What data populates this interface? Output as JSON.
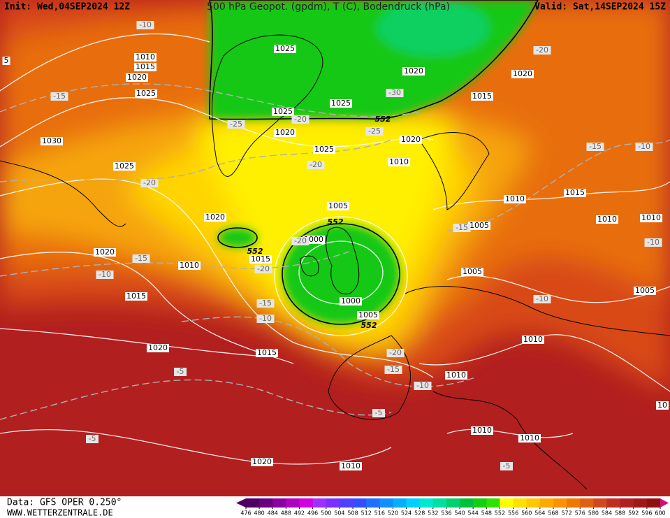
{
  "header": {
    "init": "Init: Wed,04SEP2024 12Z",
    "title": "500 hPa Geopot. (gpdm), T (C), Bodendruck (hPa)",
    "valid": "Valid: Sat,14SEP2024 15Z"
  },
  "footer": {
    "data_source": "Data: GFS OPER 0.250°",
    "website": "WWW.WETTERZENTRALE.DE"
  },
  "map": {
    "isobar_labels": [
      "1025",
      "1020",
      "1020",
      "1015",
      "1025",
      "1025",
      "1020",
      "1025",
      "1020",
      "1010",
      "1010",
      "1015",
      "1020",
      "1025",
      "1030",
      "1025",
      "1005",
      "1005",
      "1010",
      "1015",
      "1010",
      "1010",
      "1000",
      "1015",
      "1020",
      "1020",
      "1010",
      "1015",
      "1005",
      "1000",
      "1005",
      "1005",
      "1010",
      "1020",
      "1015",
      "1010",
      "1010",
      "1010",
      "1010",
      "1020",
      "5",
      "10"
    ],
    "temperature_labels": [
      "-10",
      "-20",
      "-30",
      "-25",
      "-20",
      "-25",
      "-20",
      "-15",
      "-10",
      "-20",
      "-15",
      "-20",
      "-15",
      "-10",
      "-20",
      "-15",
      "-10",
      "-10",
      "-10",
      "-20",
      "-15",
      "-10",
      "-5",
      "-5",
      "-5",
      "-5",
      "-15"
    ],
    "height_labels": [
      "552",
      "552",
      "552",
      "552"
    ]
  },
  "colorbar": {
    "labels": [
      476,
      480,
      484,
      488,
      492,
      496,
      500,
      504,
      508,
      512,
      516,
      520,
      524,
      528,
      532,
      536,
      540,
      544,
      548,
      552,
      556,
      560,
      564,
      568,
      572,
      576,
      580,
      584,
      588,
      592,
      596,
      600
    ],
    "colors": [
      "#4b0062",
      "#6a0080",
      "#8a00a0",
      "#b000c0",
      "#d000e0",
      "#a030ff",
      "#7a30ff",
      "#5040ff",
      "#3050ff",
      "#2070ff",
      "#1090ff",
      "#00b0ff",
      "#00d0ff",
      "#00e8d0",
      "#00e0a0",
      "#00d070",
      "#00c040",
      "#10d010",
      "#30e000",
      "#ffff00",
      "#ffe000",
      "#ffc800",
      "#ffa800",
      "#ff9000",
      "#f07800",
      "#e06010",
      "#d04820",
      "#c03020",
      "#b02020",
      "#a01818",
      "#901010"
    ]
  }
}
